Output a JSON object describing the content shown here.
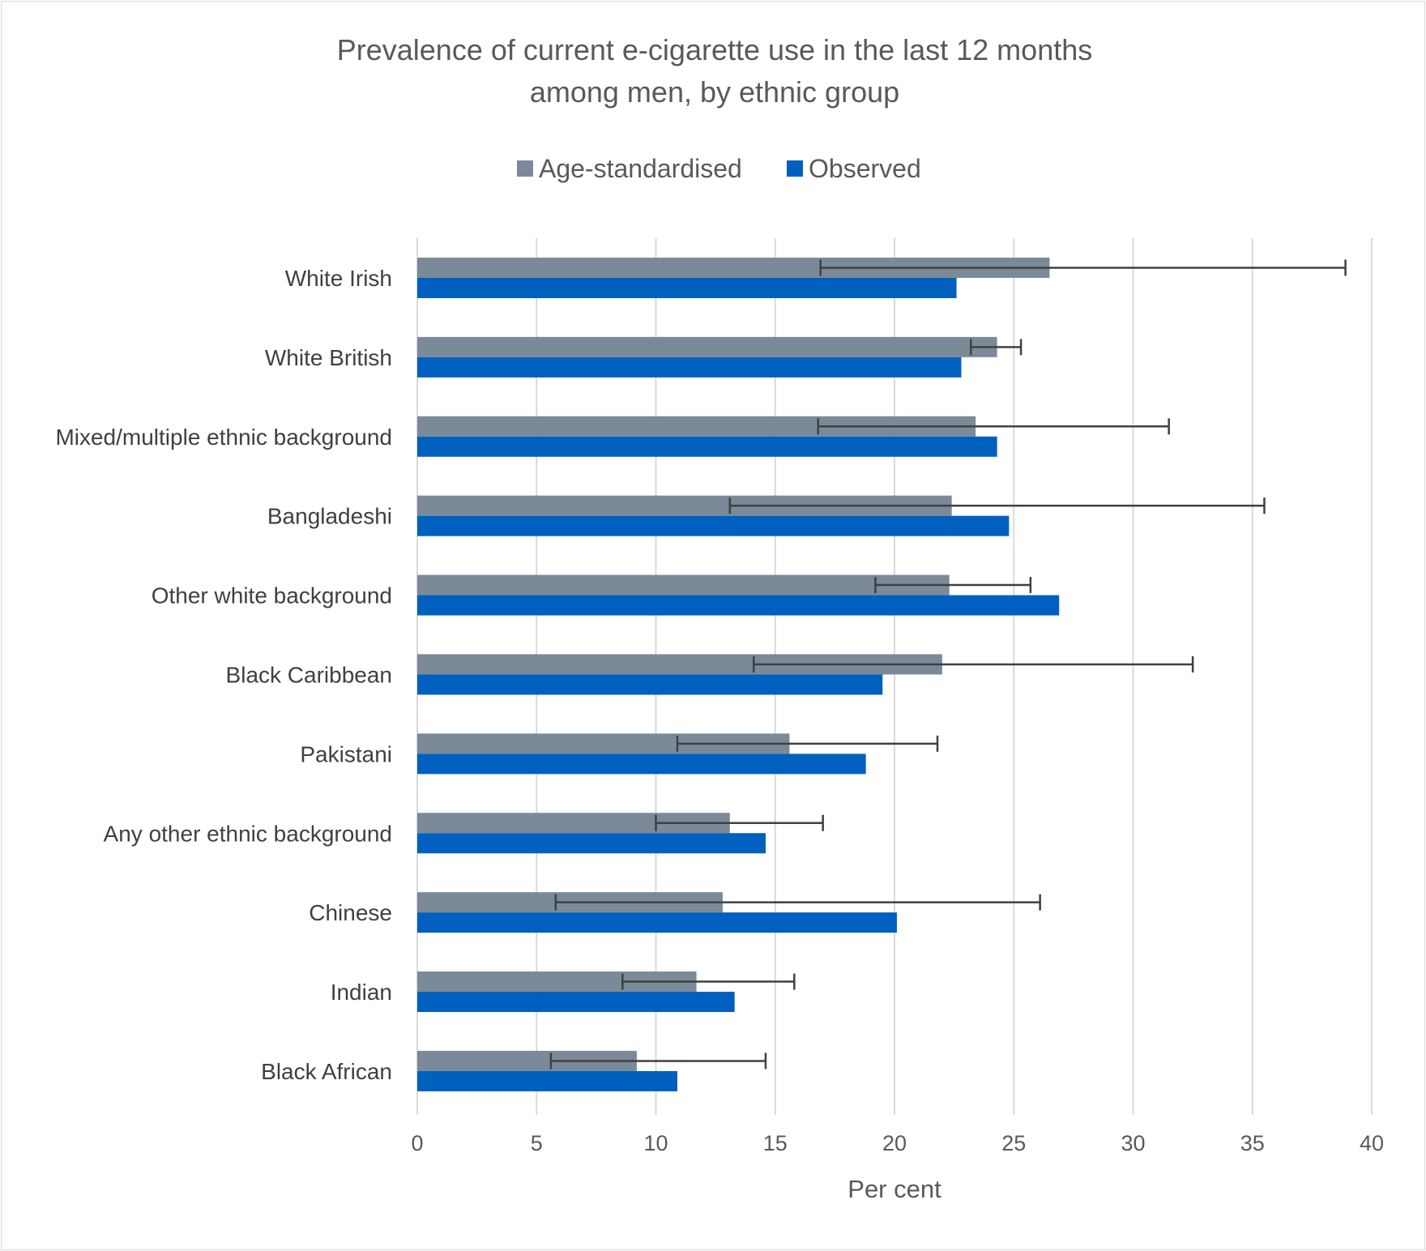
{
  "chart_data": {
    "type": "bar",
    "orientation": "horizontal",
    "title_line1": "Prevalence of current e-cigarette use in the last 12 months",
    "title_line2": "among men, by ethnic group",
    "xlabel": "Per cent",
    "xlim": [
      0,
      40
    ],
    "xticks": [
      0,
      5,
      10,
      15,
      20,
      25,
      30,
      35,
      40
    ],
    "grid": "vertical",
    "legend_position": "top",
    "categories": [
      "White Irish",
      "White British",
      "Mixed/multiple ethnic background",
      "Bangladeshi",
      "Other white background",
      "Black Caribbean",
      "Pakistani",
      "Any other ethnic background",
      "Chinese",
      "Indian",
      "Black African"
    ],
    "series": [
      {
        "name": "Age-standardised",
        "color": "#7b8a98",
        "values": [
          26.5,
          24.3,
          23.4,
          22.4,
          22.3,
          22.0,
          15.6,
          13.1,
          12.8,
          11.7,
          9.2
        ],
        "ci_lower": [
          16.9,
          23.2,
          16.8,
          13.1,
          19.2,
          14.1,
          10.9,
          10.0,
          5.8,
          8.6,
          5.6
        ],
        "ci_upper": [
          38.9,
          25.3,
          31.5,
          35.5,
          25.7,
          32.5,
          21.8,
          17.0,
          26.1,
          15.8,
          14.6
        ]
      },
      {
        "name": "Observed",
        "color": "#0060c0",
        "values": [
          22.6,
          22.8,
          24.3,
          24.8,
          26.9,
          19.5,
          18.8,
          14.6,
          20.1,
          13.3,
          10.9
        ]
      }
    ]
  }
}
